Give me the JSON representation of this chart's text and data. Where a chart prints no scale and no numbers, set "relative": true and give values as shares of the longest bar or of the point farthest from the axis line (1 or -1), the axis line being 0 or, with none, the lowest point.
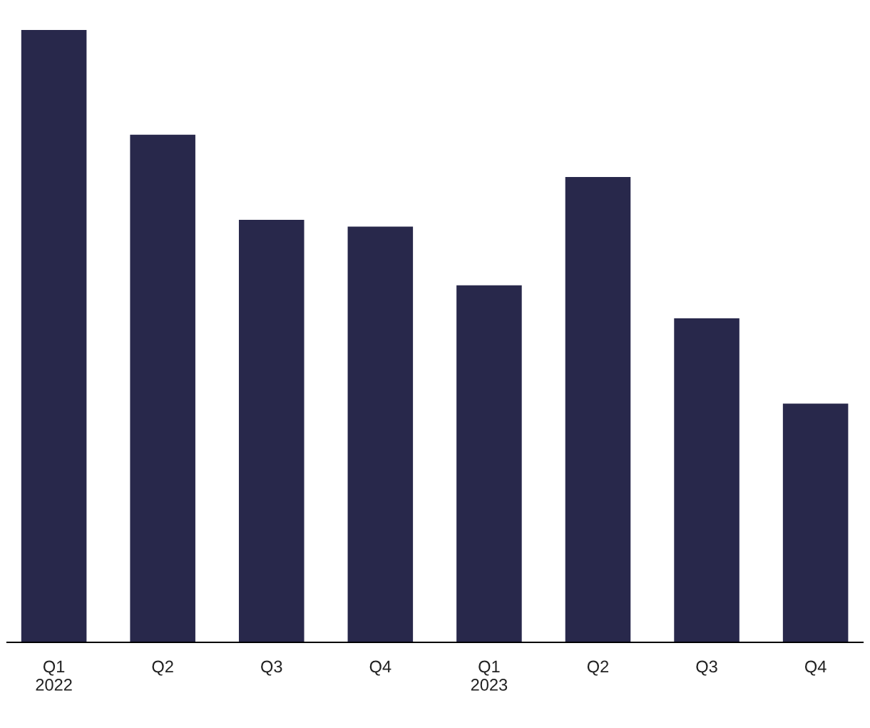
{
  "chart_data": {
    "type": "bar",
    "relative": true,
    "categories": [
      "Q1\n2022",
      "Q2",
      "Q3",
      "Q4",
      "Q1\n2023",
      "Q2",
      "Q3",
      "Q4"
    ],
    "values": [
      1,
      0.829,
      0.69,
      0.679,
      0.583,
      0.76,
      0.529,
      0.39
    ],
    "color": "#28284b",
    "grid": false,
    "legend": false
  }
}
